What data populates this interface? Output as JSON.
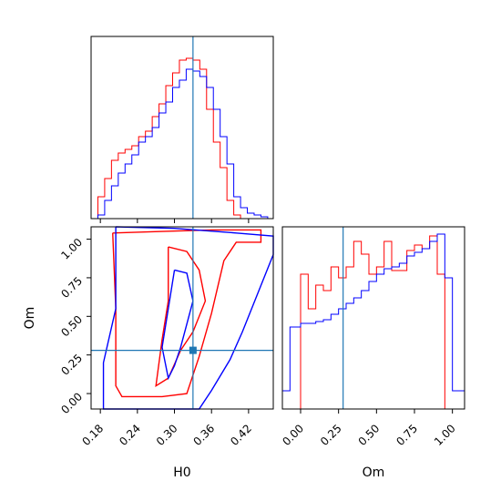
{
  "figure": {
    "type": "corner-plot",
    "parameters": [
      "H0",
      "Om"
    ]
  },
  "chart_data": [
    {
      "panel": "H0-marginal",
      "type": "histogram",
      "xlim": [
        0.165,
        0.46
      ],
      "y_ticks_shown": false,
      "truth": 0.33,
      "series": [
        {
          "color": "#ff0000",
          "edges": [
            0.165,
            0.176,
            0.187,
            0.198,
            0.209,
            0.22,
            0.231,
            0.242,
            0.253,
            0.264,
            0.275,
            0.286,
            0.297,
            0.308,
            0.319,
            0.33,
            0.341,
            0.352,
            0.363,
            0.374,
            0.385,
            0.396,
            0.407,
            0.418,
            0.429,
            0.44,
            0.451,
            0.46
          ],
          "values": [
            0,
            0.12,
            0.22,
            0.32,
            0.36,
            0.38,
            0.4,
            0.45,
            0.48,
            0.56,
            0.63,
            0.73,
            0.8,
            0.87,
            0.88,
            0.87,
            0.82,
            0.6,
            0.42,
            0.28,
            0.1,
            0.02,
            0,
            0,
            0,
            0,
            0
          ]
        },
        {
          "color": "#0000ff",
          "edges": [
            0.165,
            0.176,
            0.187,
            0.198,
            0.209,
            0.22,
            0.231,
            0.242,
            0.253,
            0.264,
            0.275,
            0.286,
            0.297,
            0.308,
            0.319,
            0.33,
            0.341,
            0.352,
            0.363,
            0.374,
            0.385,
            0.396,
            0.407,
            0.418,
            0.429,
            0.44,
            0.451,
            0.46
          ],
          "values": [
            0,
            0.02,
            0.1,
            0.18,
            0.25,
            0.3,
            0.35,
            0.42,
            0.45,
            0.5,
            0.58,
            0.64,
            0.72,
            0.76,
            0.82,
            0.81,
            0.78,
            0.72,
            0.6,
            0.45,
            0.3,
            0.12,
            0.06,
            0.03,
            0.02,
            0.01,
            0.0
          ]
        }
      ],
      "ylim": [
        0,
        1
      ]
    },
    {
      "panel": "Om-marginal",
      "type": "histogram",
      "xlim": [
        -0.12,
        1.08
      ],
      "y_ticks_shown": false,
      "truth": 0.28,
      "series": [
        {
          "color": "#ff0000",
          "edges": [
            0.0,
            0.05,
            0.1,
            0.15,
            0.2,
            0.25,
            0.3,
            0.35,
            0.4,
            0.45,
            0.5,
            0.55,
            0.6,
            0.65,
            0.7,
            0.75,
            0.8,
            0.85,
            0.9,
            0.95,
            1.0
          ],
          "values": [
            0.74,
            0.55,
            0.68,
            0.65,
            0.78,
            0.72,
            0.78,
            0.92,
            0.85,
            0.74,
            0.78,
            0.92,
            0.76,
            0.76,
            0.87,
            0.9,
            0.88,
            0.95,
            0.74,
            0.0
          ]
        },
        {
          "color": "#0000ff",
          "edges": [
            -0.12,
            -0.07,
            0.0,
            0.05,
            0.1,
            0.15,
            0.2,
            0.25,
            0.3,
            0.35,
            0.4,
            0.45,
            0.5,
            0.55,
            0.6,
            0.65,
            0.7,
            0.75,
            0.8,
            0.85,
            0.9,
            0.95,
            1.0,
            1.05,
            1.08
          ],
          "values": [
            0.1,
            0.45,
            0.47,
            0.47,
            0.48,
            0.49,
            0.52,
            0.55,
            0.58,
            0.61,
            0.65,
            0.7,
            0.74,
            0.77,
            0.78,
            0.8,
            0.84,
            0.86,
            0.88,
            0.92,
            0.96,
            0.72,
            0.1,
            0.1
          ]
        }
      ],
      "ylim": [
        0,
        1
      ],
      "xlabel": "Om",
      "xticks": [
        "0.00",
        "0.25",
        "0.50",
        "0.75",
        "1.00"
      ],
      "xtick_values": [
        0.0,
        0.25,
        0.5,
        0.75,
        1.0
      ]
    },
    {
      "panel": "H0-vs-Om",
      "type": "contour",
      "xlim": [
        0.165,
        0.46
      ],
      "ylim": [
        -0.1,
        1.08
      ],
      "xlabel": "H0",
      "ylabel": "Om",
      "xticks": [
        "0.18",
        "0.24",
        "0.30",
        "0.36",
        "0.42"
      ],
      "xtick_values": [
        0.18,
        0.24,
        0.3,
        0.36,
        0.42
      ],
      "yticks": [
        "0.00",
        "0.25",
        "0.50",
        "0.75",
        "1.00"
      ],
      "ytick_values": [
        0.0,
        0.25,
        0.5,
        0.75,
        1.0
      ],
      "truth": {
        "x": 0.33,
        "y": 0.28
      },
      "contours": [
        {
          "color": "#ff0000",
          "points": [
            [
              0.2,
              1.04
            ],
            [
              0.28,
              1.05
            ],
            [
              0.36,
              1.06
            ],
            [
              0.44,
              1.06
            ],
            [
              0.44,
              0.98
            ],
            [
              0.4,
              0.98
            ],
            [
              0.38,
              0.86
            ],
            [
              0.36,
              0.52
            ],
            [
              0.34,
              0.24
            ],
            [
              0.32,
              0.0
            ],
            [
              0.28,
              -0.02
            ],
            [
              0.215,
              -0.02
            ],
            [
              0.205,
              0.05
            ],
            [
              0.205,
              0.55
            ],
            [
              0.2,
              1.04
            ]
          ]
        },
        {
          "color": "#0000ff",
          "points": [
            [
              0.205,
              1.08
            ],
            [
              0.3,
              1.07
            ],
            [
              0.4,
              1.04
            ],
            [
              0.46,
              1.02
            ],
            [
              0.46,
              0.9
            ],
            [
              0.43,
              0.6
            ],
            [
              0.41,
              0.4
            ],
            [
              0.39,
              0.22
            ],
            [
              0.36,
              0.02
            ],
            [
              0.34,
              -0.1
            ],
            [
              0.185,
              -0.1
            ],
            [
              0.185,
              0.2
            ],
            [
              0.205,
              0.55
            ],
            [
              0.205,
              1.08
            ]
          ]
        },
        {
          "color": "#ff0000",
          "points": [
            [
              0.29,
              0.95
            ],
            [
              0.32,
              0.92
            ],
            [
              0.34,
              0.8
            ],
            [
              0.35,
              0.6
            ],
            [
              0.33,
              0.4
            ],
            [
              0.31,
              0.28
            ],
            [
              0.29,
              0.1
            ],
            [
              0.27,
              0.05
            ],
            [
              0.28,
              0.35
            ],
            [
              0.29,
              0.6
            ],
            [
              0.29,
              0.95
            ]
          ]
        },
        {
          "color": "#0000ff",
          "points": [
            [
              0.3,
              0.8
            ],
            [
              0.32,
              0.78
            ],
            [
              0.33,
              0.6
            ],
            [
              0.32,
              0.45
            ],
            [
              0.31,
              0.3
            ],
            [
              0.3,
              0.18
            ],
            [
              0.29,
              0.1
            ],
            [
              0.28,
              0.3
            ],
            [
              0.29,
              0.55
            ],
            [
              0.3,
              0.8
            ]
          ]
        }
      ]
    }
  ]
}
